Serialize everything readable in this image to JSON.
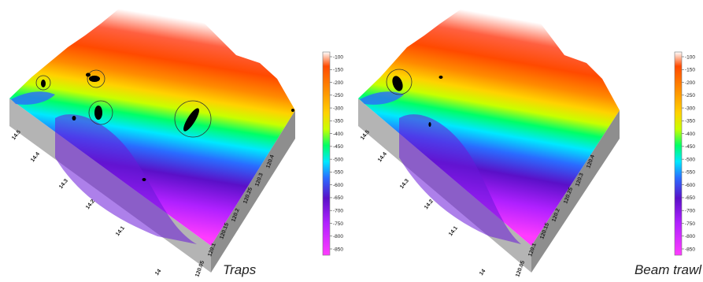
{
  "panels": [
    {
      "caption": "Traps",
      "markers": [
        "hotspot-1",
        "hotspot-2",
        "hotspot-3",
        "hotspot-4",
        "hotspot-5",
        "hotspot-6",
        "hotspot-7"
      ],
      "circled_areas": 4
    },
    {
      "caption": "Beam trawl",
      "markers": [
        "hotspot-1",
        "hotspot-2",
        "hotspot-3"
      ],
      "circled_areas": 1
    }
  ],
  "axes": {
    "latitude_ticks": [
      "14",
      "14.1",
      "14.2",
      "14.3",
      "14.4",
      "14.5"
    ],
    "longitude_ticks": [
      "120.05",
      "120.1",
      "120.15",
      "120.2",
      "120.25",
      "120.3",
      "120.4"
    ]
  },
  "legend": {
    "ticks": [
      "-100",
      "-150",
      "-200",
      "-250",
      "-300",
      "-350",
      "-400",
      "-450",
      "-500",
      "-550",
      "-600",
      "-650",
      "-700",
      "-750",
      "-800",
      "-850"
    ],
    "colors": [
      "#ffffff",
      "#ff4a00",
      "#ff8a00",
      "#ffd200",
      "#c8ff00",
      "#00ff66",
      "#00e8ff",
      "#2a6bff",
      "#5a10c8",
      "#b020ff",
      "#ff3cff"
    ]
  },
  "colors": {
    "side_wall": "#b4b4b4",
    "side_wall_dark": "#8e8e8e",
    "marker": "#000000"
  }
}
